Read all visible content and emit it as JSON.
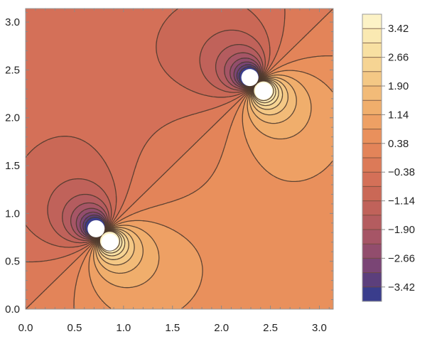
{
  "chart_data": {
    "type": "contour",
    "title": "",
    "xlabel": "",
    "ylabel": "",
    "xlim": [
      0.0,
      3.14159
    ],
    "ylim": [
      0.0,
      3.14159
    ],
    "x_ticks": [
      0.0,
      0.5,
      1.0,
      1.5,
      2.0,
      2.5,
      3.0
    ],
    "x_tick_labels": [
      "0.0",
      "0.5",
      "1.0",
      "1.5",
      "2.0",
      "2.5",
      "3.0"
    ],
    "y_ticks": [
      0.0,
      0.5,
      1.0,
      1.5,
      2.0,
      2.5,
      3.0
    ],
    "y_tick_labels": [
      "0.0",
      "0.5",
      "1.0",
      "1.5",
      "2.0",
      "2.5",
      "3.0"
    ],
    "dipoles": [
      {
        "center": [
          0.785,
          0.785
        ],
        "negative_pole": [
          0.72,
          0.84
        ],
        "positive_pole": [
          0.86,
          0.7
        ]
      },
      {
        "center": [
          2.356,
          2.356
        ],
        "negative_pole": [
          2.29,
          2.42
        ],
        "positive_pole": [
          2.43,
          2.28
        ]
      }
    ],
    "grid": false,
    "colorbar": {
      "position": "right",
      "range": [
        -3.8,
        3.8
      ],
      "levels": [
        -3.8,
        -3.42,
        -3.04,
        -2.66,
        -2.28,
        -1.9,
        -1.52,
        -1.14,
        -0.76,
        -0.38,
        0.0,
        0.38,
        0.76,
        1.14,
        1.52,
        1.9,
        2.28,
        2.66,
        3.04,
        3.42,
        3.8
      ],
      "tick_values": [
        3.42,
        2.66,
        1.9,
        1.14,
        0.38,
        -0.38,
        -1.14,
        -1.9,
        -2.66,
        -3.42
      ],
      "tick_labels": [
        "3.42",
        "2.66",
        "1.90",
        "1.14",
        "0.38",
        "−0.38",
        "−1.14",
        "−1.90",
        "−2.66",
        "−3.42"
      ],
      "colors_low_to_high": [
        "#3a3d8c",
        "#5c3f7c",
        "#7a4575",
        "#924d6d",
        "#a65566",
        "#b45c5f",
        "#c0625a",
        "#ca6856",
        "#d47058",
        "#dc7a58",
        "#e38459",
        "#e9905c",
        "#eea064",
        "#f0ae6c",
        "#f2bb78",
        "#f4c885",
        "#f6d493",
        "#f8e0a2",
        "#fae9b2",
        "#fcf2c6"
      ]
    }
  }
}
